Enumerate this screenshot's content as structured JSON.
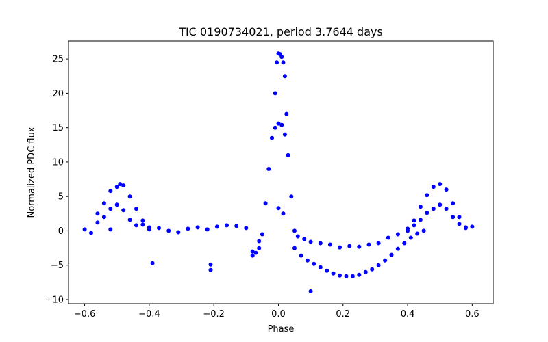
{
  "chart_data": {
    "type": "scatter",
    "title": "TIC 0190734021, period 3.7644 days",
    "xlabel": "Phase",
    "ylabel": "Normalized PDC flux",
    "xlim": [
      -0.65,
      0.665
    ],
    "ylim": [
      -10.6,
      27.6
    ],
    "xticks": [
      -0.6,
      -0.4,
      -0.2,
      0.0,
      0.2,
      0.4,
      0.6
    ],
    "xtick_labels": [
      "−0.6",
      "−0.4",
      "−0.2",
      "0.0",
      "0.2",
      "0.4",
      "0.6"
    ],
    "yticks": [
      -10,
      -5,
      0,
      5,
      10,
      15,
      20,
      25
    ],
    "ytick_labels": [
      "−10",
      "−5",
      "0",
      "5",
      "10",
      "15",
      "20",
      "25"
    ],
    "grid": false,
    "legend": "none",
    "marker_color": "#0000ff",
    "series": [
      {
        "x": [
          -0.6,
          -0.58,
          -0.56,
          -0.54,
          -0.52,
          -0.5,
          -0.48,
          -0.46,
          -0.44,
          -0.42,
          -0.4,
          -0.37,
          -0.34,
          -0.31,
          -0.28,
          -0.25,
          -0.22,
          -0.19,
          -0.16,
          -0.13,
          -0.1,
          -0.08,
          -0.06,
          -0.04,
          -0.03,
          -0.02,
          -0.01,
          0.0,
          0.01,
          0.02,
          0.03,
          0.04,
          0.05,
          0.06,
          0.08,
          0.1,
          0.13,
          0.16,
          0.19,
          0.22,
          0.25,
          0.28,
          0.31,
          0.34,
          0.37,
          0.4,
          0.42,
          0.44,
          0.46,
          0.48,
          0.5,
          0.52,
          0.54,
          0.56,
          0.58,
          0.6
        ],
        "y": [
          0.2,
          -0.3,
          1.2,
          2.0,
          3.2,
          3.8,
          3.0,
          1.6,
          0.8,
          0.9,
          0.2,
          0.4,
          0.0,
          -0.2,
          0.3,
          0.5,
          0.2,
          0.6,
          0.8,
          0.7,
          0.4,
          -3.0,
          -1.5,
          4.0,
          9.0,
          13.5,
          15.0,
          15.6,
          15.4,
          14.0,
          11.0,
          5.0,
          0.0,
          -0.8,
          -1.2,
          -1.6,
          -1.8,
          -2.0,
          -2.4,
          -2.2,
          -2.3,
          -2.0,
          -1.8,
          -1.0,
          -0.5,
          0.0,
          0.8,
          1.6,
          2.6,
          3.2,
          3.8,
          3.2,
          2.0,
          1.0,
          0.4,
          0.6
        ]
      },
      {
        "x": [
          -0.56,
          -0.54,
          -0.52,
          -0.5,
          -0.49,
          -0.48,
          -0.46,
          -0.44,
          -0.42,
          -0.4
        ],
        "y": [
          2.5,
          4.0,
          5.8,
          6.4,
          6.8,
          6.6,
          5.0,
          3.2,
          1.5,
          0.5
        ]
      },
      {
        "x": [
          0.4,
          0.42,
          0.44,
          0.46,
          0.48,
          0.5,
          0.52,
          0.54,
          0.56,
          0.58
        ],
        "y": [
          0.3,
          1.5,
          3.5,
          5.2,
          6.4,
          6.8,
          6.0,
          4.0,
          2.0,
          0.5
        ]
      },
      {
        "x": [
          0.05,
          0.07,
          0.09,
          0.11,
          0.13,
          0.15,
          0.17,
          0.19,
          0.21,
          0.23,
          0.25,
          0.27,
          0.29,
          0.31,
          0.33,
          0.35,
          0.37,
          0.39,
          0.41,
          0.43,
          0.45
        ],
        "y": [
          -2.5,
          -3.6,
          -4.3,
          -4.8,
          -5.3,
          -5.8,
          -6.2,
          -6.5,
          -6.6,
          -6.6,
          -6.4,
          -6.0,
          -5.6,
          -5.0,
          -4.3,
          -3.5,
          -2.6,
          -1.8,
          -1.0,
          -0.4,
          0.0
        ]
      },
      {
        "x": [
          -0.01,
          -0.005,
          0.0,
          0.005,
          0.01,
          0.015,
          0.02,
          0.025
        ],
        "y": [
          20.0,
          24.5,
          25.8,
          25.7,
          25.3,
          24.5,
          22.5,
          17.0
        ]
      },
      {
        "x": [
          -0.08,
          -0.07,
          -0.06,
          -0.05
        ],
        "y": [
          -3.6,
          -3.2,
          -2.5,
          -0.5
        ]
      },
      {
        "x": [
          -0.52,
          -0.39,
          -0.21,
          -0.21,
          0.0,
          0.015,
          0.1
        ],
        "y": [
          0.2,
          -4.7,
          -5.7,
          -4.9,
          3.3,
          2.5,
          -8.8
        ]
      }
    ]
  }
}
